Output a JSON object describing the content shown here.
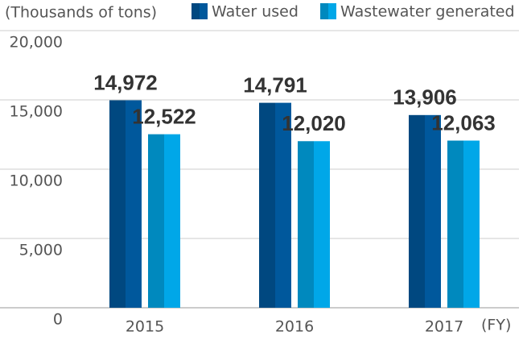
{
  "chart_data": {
    "type": "bar",
    "y_axis_label": "(Thousands of tons)",
    "x_axis_label": "(FY)",
    "categories": [
      "2015",
      "2016",
      "2017"
    ],
    "series": [
      {
        "name": "Water used",
        "color": "#00589c",
        "values": [
          14972,
          14791,
          13906
        ],
        "value_labels": [
          "14,972",
          "14,791",
          "13,906"
        ]
      },
      {
        "name": "Wastewater generated",
        "color": "#00a7e8",
        "values": [
          12522,
          12020,
          12063
        ],
        "value_labels": [
          "12,522",
          "12,020",
          "12,063"
        ]
      }
    ],
    "ylim": [
      0,
      20000
    ],
    "yticks": [
      0,
      {
        "value": 5000,
        "label": "5,000"
      },
      {
        "value": 10000,
        "label": "10,000"
      },
      {
        "value": 15000,
        "label": "15,000"
      },
      {
        "value": 20000,
        "label": "20,000"
      }
    ],
    "grid": true
  }
}
